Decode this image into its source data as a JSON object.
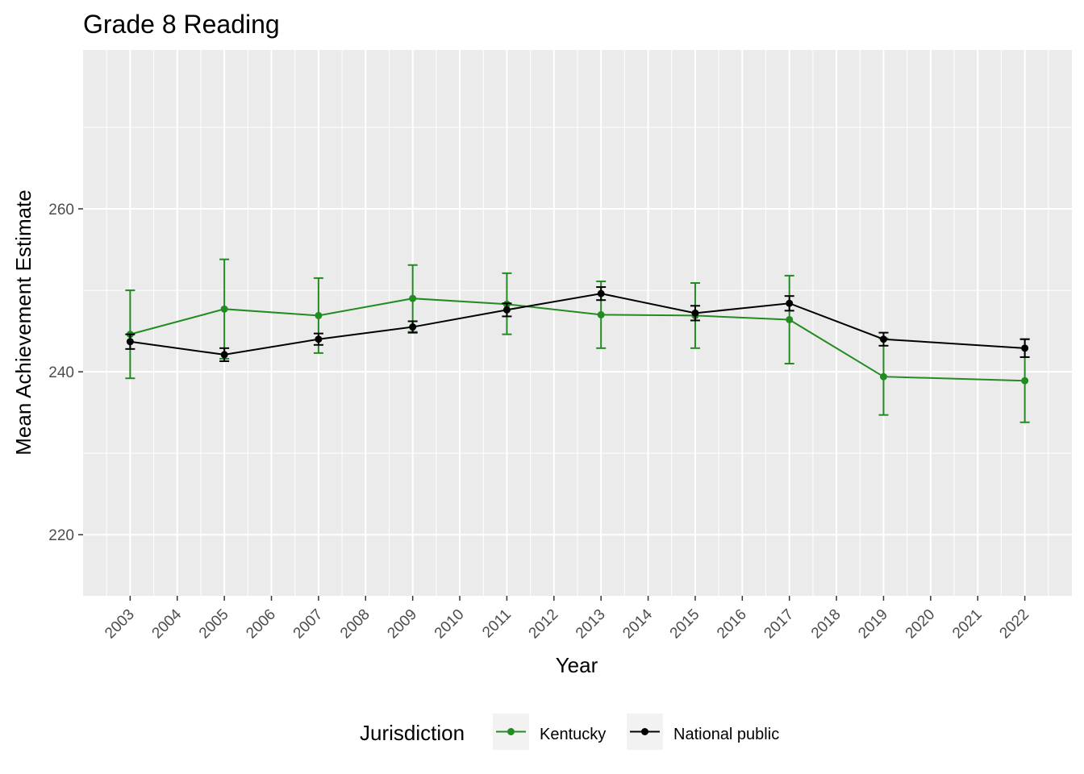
{
  "chart_data": {
    "type": "line",
    "title": "Grade 8 Reading",
    "xlabel": "Year",
    "ylabel": "Mean Achievement Estimate",
    "x_ticks": [
      "2003",
      "2004",
      "2005",
      "2006",
      "2007",
      "2008",
      "2009",
      "2010",
      "2011",
      "2012",
      "2013",
      "2014",
      "2015",
      "2016",
      "2017",
      "2018",
      "2019",
      "2020",
      "2021",
      "2022"
    ],
    "y_ticks": [
      220,
      240,
      260
    ],
    "xlim": [
      2002,
      2023
    ],
    "ylim": [
      212.5,
      279.5
    ],
    "grid": true,
    "legend": {
      "title": "Jurisdiction",
      "position": "bottom"
    },
    "series": [
      {
        "name": "Kentucky",
        "color": "#228B22",
        "points": [
          {
            "x": 2003,
            "y": 244.6,
            "low": 239.2,
            "high": 250.0
          },
          {
            "x": 2005,
            "y": 247.7,
            "low": 241.6,
            "high": 253.8
          },
          {
            "x": 2007,
            "y": 246.9,
            "low": 242.3,
            "high": 251.5
          },
          {
            "x": 2009,
            "y": 249.0,
            "low": 244.9,
            "high": 253.1
          },
          {
            "x": 2011,
            "y": 248.3,
            "low": 244.6,
            "high": 252.1
          },
          {
            "x": 2013,
            "y": 247.0,
            "low": 242.9,
            "high": 251.1
          },
          {
            "x": 2015,
            "y": 246.9,
            "low": 242.9,
            "high": 250.9
          },
          {
            "x": 2017,
            "y": 246.4,
            "low": 241.0,
            "high": 251.8
          },
          {
            "x": 2019,
            "y": 239.4,
            "low": 234.7,
            "high": 244.1
          },
          {
            "x": 2022,
            "y": 238.9,
            "low": 233.8,
            "high": 244.0
          }
        ]
      },
      {
        "name": "National public",
        "color": "#000000",
        "points": [
          {
            "x": 2003,
            "y": 243.7,
            "low": 242.8,
            "high": 244.6
          },
          {
            "x": 2005,
            "y": 242.1,
            "low": 241.3,
            "high": 242.9
          },
          {
            "x": 2007,
            "y": 244.0,
            "low": 243.3,
            "high": 244.7
          },
          {
            "x": 2009,
            "y": 245.5,
            "low": 244.8,
            "high": 246.2
          },
          {
            "x": 2011,
            "y": 247.6,
            "low": 246.8,
            "high": 248.4
          },
          {
            "x": 2013,
            "y": 249.6,
            "low": 248.8,
            "high": 250.4
          },
          {
            "x": 2015,
            "y": 247.2,
            "low": 246.3,
            "high": 248.1
          },
          {
            "x": 2017,
            "y": 248.4,
            "low": 247.5,
            "high": 249.3
          },
          {
            "x": 2019,
            "y": 244.0,
            "low": 243.2,
            "high": 244.8
          },
          {
            "x": 2022,
            "y": 242.9,
            "low": 241.8,
            "high": 244.0
          }
        ]
      }
    ]
  }
}
